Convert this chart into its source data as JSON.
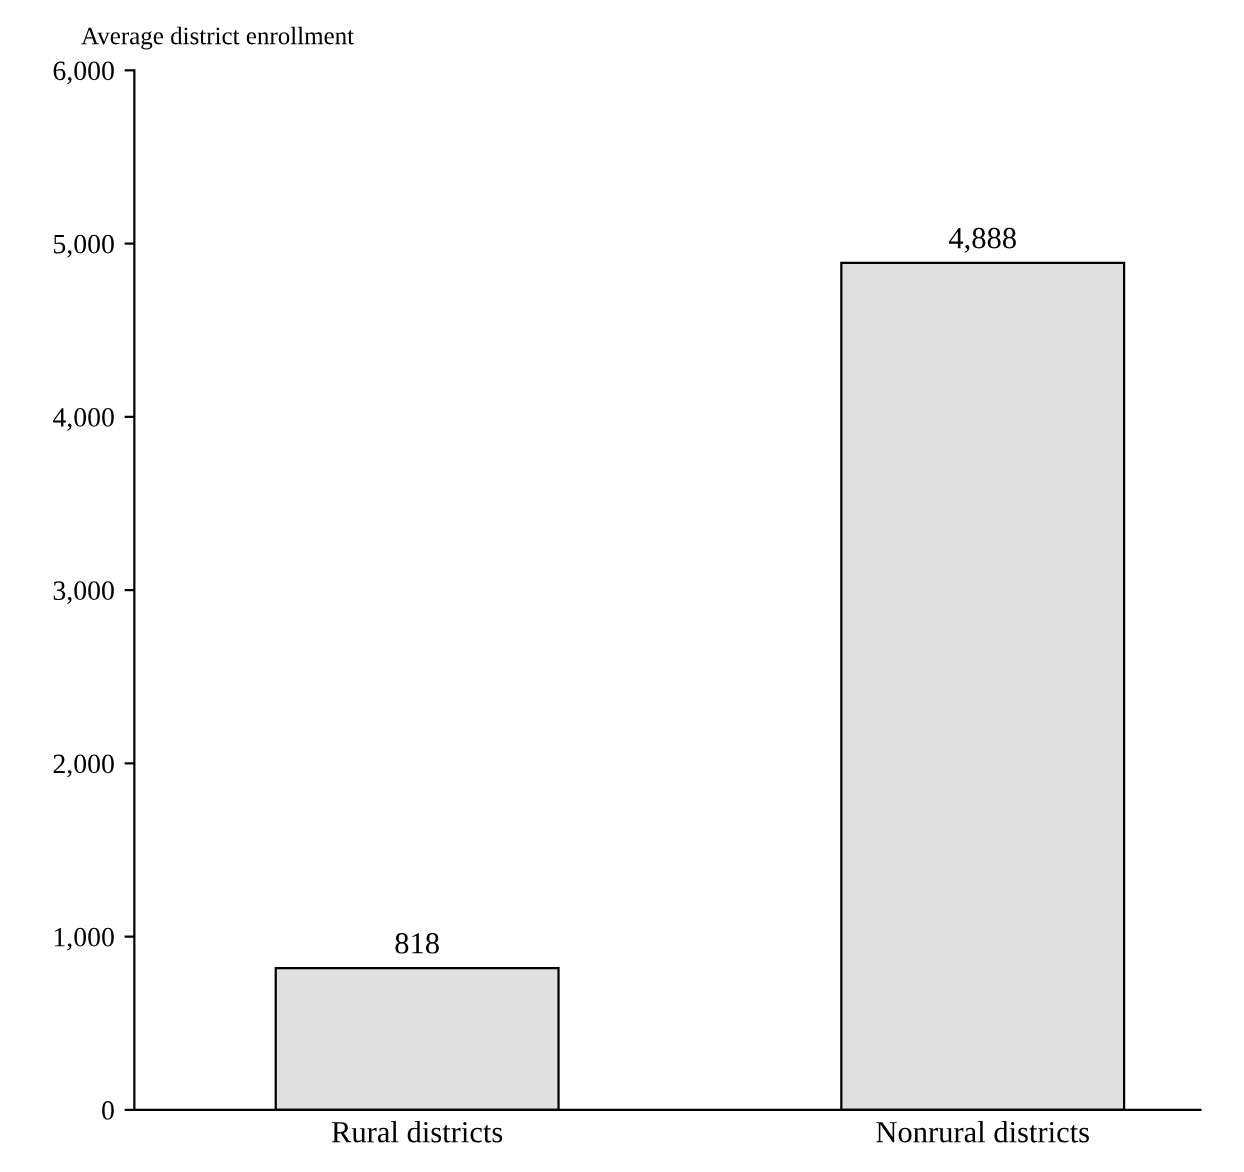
{
  "chart_data": {
    "type": "bar",
    "ylabel": "Average district enrollment",
    "categories": [
      "Rural districts",
      "Nonrural districts"
    ],
    "values": [
      818,
      4888
    ],
    "value_labels": [
      "818",
      "4,888"
    ],
    "color": "#e0e0e0",
    "ylim": [
      0,
      6000
    ],
    "yticks": [
      0,
      {
        "value": 1000,
        "label": "1,000"
      },
      {
        "value": 2000,
        "label": "2,000"
      },
      {
        "value": 3000,
        "label": "3,000"
      },
      {
        "value": 4000,
        "label": "4,000"
      },
      {
        "value": 5000,
        "label": "5,000"
      },
      {
        "value": 6000,
        "label": "6,000"
      }
    ],
    "grid": false,
    "legend": false
  }
}
